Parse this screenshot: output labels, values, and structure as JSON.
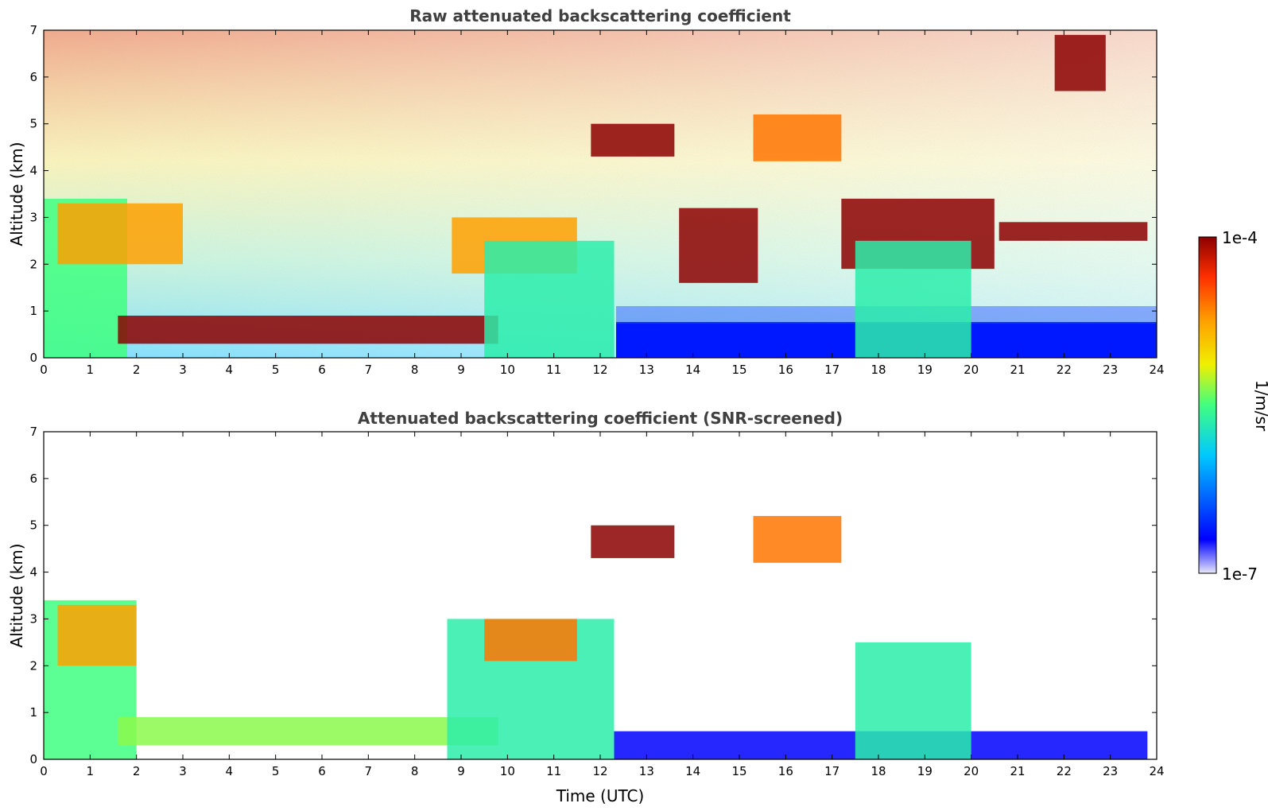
{
  "chart_data": [
    {
      "type": "heatmap",
      "title": "Raw attenuated backscattering coefficient",
      "xlabel": "",
      "ylabel": "Altitude (km)",
      "xlim": [
        0,
        24
      ],
      "ylim": [
        0,
        7
      ],
      "x_ticks": [
        "0",
        "1",
        "2",
        "3",
        "4",
        "5",
        "6",
        "7",
        "8",
        "9",
        "10",
        "11",
        "12",
        "13",
        "14",
        "15",
        "16",
        "17",
        "18",
        "19",
        "20",
        "21",
        "22",
        "23",
        "24"
      ],
      "y_ticks": [
        "0",
        "1",
        "2",
        "3",
        "4",
        "5",
        "6",
        "7"
      ],
      "grid": false,
      "features": [
        {
          "t0": 0.0,
          "t1": 1.8,
          "z0": 0.0,
          "z1": 3.4,
          "level": 0.5
        },
        {
          "t0": 0.3,
          "t1": 3.0,
          "z0": 2.0,
          "z1": 3.3,
          "level": 0.75
        },
        {
          "t0": 1.6,
          "t1": 9.8,
          "z0": 0.3,
          "z1": 0.9,
          "level": 1.0
        },
        {
          "t0": 8.8,
          "t1": 11.5,
          "z0": 1.8,
          "z1": 3.0,
          "level": 0.75
        },
        {
          "t0": 9.5,
          "t1": 12.3,
          "z0": 0.0,
          "z1": 2.5,
          "level": 0.45
        },
        {
          "t0": 11.8,
          "t1": 13.6,
          "z0": 4.3,
          "z1": 5.0,
          "level": 1.0
        },
        {
          "t0": 13.7,
          "t1": 15.4,
          "z0": 1.6,
          "z1": 3.2,
          "level": 1.0
        },
        {
          "t0": 15.3,
          "t1": 17.2,
          "z0": 4.2,
          "z1": 5.2,
          "level": 0.8
        },
        {
          "t0": 17.2,
          "t1": 20.5,
          "z0": 1.9,
          "z1": 3.4,
          "level": 1.0
        },
        {
          "t0": 17.5,
          "t1": 20.0,
          "z0": 0.0,
          "z1": 2.5,
          "level": 0.45
        },
        {
          "t0": 20.6,
          "t1": 23.8,
          "z0": 2.5,
          "z1": 2.9,
          "level": 1.0
        },
        {
          "t0": 21.8,
          "t1": 22.9,
          "z0": 5.7,
          "z1": 6.9,
          "level": 1.0
        }
      ]
    },
    {
      "type": "heatmap",
      "title": "Attenuated backscattering coefficient (SNR-screened)",
      "xlabel": "Time (UTC)",
      "ylabel": "Altitude (km)",
      "xlim": [
        0,
        24
      ],
      "ylim": [
        0,
        7
      ],
      "x_ticks": [
        "0",
        "1",
        "2",
        "3",
        "4",
        "5",
        "6",
        "7",
        "8",
        "9",
        "10",
        "11",
        "12",
        "13",
        "14",
        "15",
        "16",
        "17",
        "18",
        "19",
        "20",
        "21",
        "22",
        "23",
        "24"
      ],
      "y_ticks": [
        "0",
        "1",
        "2",
        "3",
        "4",
        "5",
        "6",
        "7"
      ],
      "grid": false,
      "features": [
        {
          "t0": 0.0,
          "t1": 2.0,
          "z0": 0.0,
          "z1": 3.4,
          "level": 0.5
        },
        {
          "t0": 0.3,
          "t1": 2.0,
          "z0": 2.0,
          "z1": 3.3,
          "level": 0.75
        },
        {
          "t0": 1.6,
          "t1": 9.8,
          "z0": 0.3,
          "z1": 0.9,
          "level": 0.55
        },
        {
          "t0": 8.7,
          "t1": 12.3,
          "z0": 0.0,
          "z1": 3.0,
          "level": 0.45
        },
        {
          "t0": 9.5,
          "t1": 11.5,
          "z0": 2.1,
          "z1": 3.0,
          "level": 0.8
        },
        {
          "t0": 12.3,
          "t1": 23.8,
          "z0": 0.0,
          "z1": 0.6,
          "level": 0.12
        },
        {
          "t0": 11.8,
          "t1": 13.6,
          "z0": 4.3,
          "z1": 5.0,
          "level": 1.0
        },
        {
          "t0": 15.3,
          "t1": 17.2,
          "z0": 4.2,
          "z1": 5.2,
          "level": 0.8
        },
        {
          "t0": 17.5,
          "t1": 20.0,
          "z0": 0.0,
          "z1": 2.5,
          "level": 0.45
        }
      ]
    }
  ],
  "colorbar": {
    "label": "1/m/sr",
    "max_label": "1e-4",
    "min_label": "1e-7",
    "colormap": [
      "#e8e8f8",
      "#0000ff",
      "#00c8ff",
      "#40ff80",
      "#f0f000",
      "#ffa000",
      "#ff3000",
      "#8c0000"
    ]
  }
}
